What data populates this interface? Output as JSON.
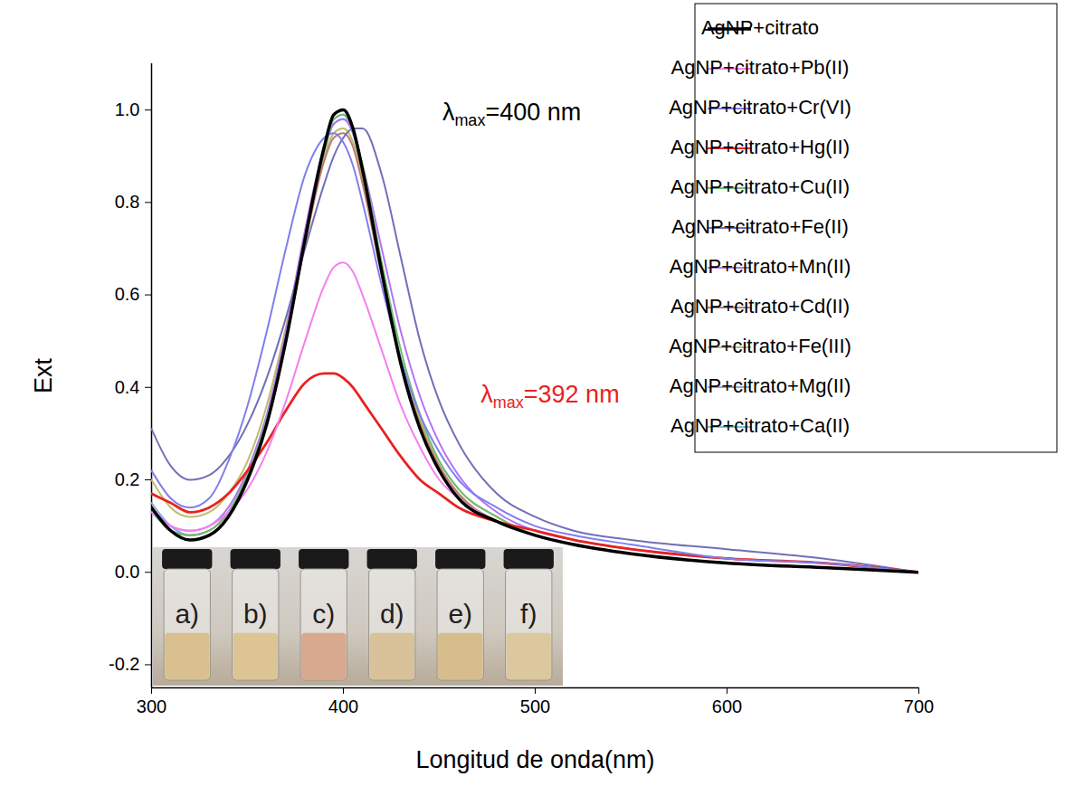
{
  "chart_data": {
    "type": "line",
    "x_label": "Longitud de onda(nm)",
    "y_label": "Ext",
    "xlim": [
      300,
      700
    ],
    "xticks": [
      300,
      400,
      500,
      600,
      700
    ],
    "ylim": [
      -0.25,
      1.1
    ],
    "yticks": [
      -0.2,
      {
        "value": 0,
        "label": "0.0"
      },
      0.2,
      0.4,
      0.6,
      0.8,
      {
        "value": 1,
        "label": "1.0"
      }
    ],
    "grid": false,
    "legend": "upper right",
    "x": [
      300,
      310,
      320,
      330,
      340,
      350,
      360,
      370,
      380,
      390,
      395,
      400,
      405,
      410,
      420,
      430,
      440,
      450,
      460,
      480,
      500,
      520,
      550,
      600,
      650,
      700
    ],
    "series": [
      {
        "name": "AgNP+citrato",
        "color": "#000000",
        "values": [
          0.14,
          0.09,
          0.07,
          0.08,
          0.12,
          0.2,
          0.32,
          0.5,
          0.72,
          0.92,
          0.99,
          1.0,
          0.96,
          0.87,
          0.65,
          0.45,
          0.31,
          0.22,
          0.16,
          0.11,
          0.08,
          0.06,
          0.04,
          0.02,
          0.01,
          0.0
        ]
      },
      {
        "name": "AgNP+citrato+Pb(II)",
        "color": "#f57ff0",
        "values": [
          0.13,
          0.1,
          0.09,
          0.1,
          0.13,
          0.18,
          0.26,
          0.37,
          0.5,
          0.62,
          0.66,
          0.67,
          0.65,
          0.6,
          0.48,
          0.36,
          0.27,
          0.2,
          0.16,
          0.11,
          0.08,
          0.06,
          0.04,
          0.02,
          0.01,
          0.0
        ]
      },
      {
        "name": "AgNP+citrato+Cr(VI)",
        "color": "#7f80ec",
        "values": [
          0.22,
          0.16,
          0.14,
          0.16,
          0.24,
          0.36,
          0.52,
          0.7,
          0.86,
          0.94,
          0.95,
          0.93,
          0.88,
          0.8,
          0.62,
          0.46,
          0.34,
          0.26,
          0.2,
          0.14,
          0.1,
          0.08,
          0.06,
          0.03,
          0.02,
          0.0
        ]
      },
      {
        "name": "AgNP+citrato+Hg(II)",
        "color": "#e8221f",
        "values": [
          0.17,
          0.15,
          0.13,
          0.14,
          0.17,
          0.22,
          0.28,
          0.35,
          0.41,
          0.43,
          0.43,
          0.42,
          0.4,
          0.37,
          0.31,
          0.25,
          0.2,
          0.17,
          0.14,
          0.11,
          0.09,
          0.07,
          0.05,
          0.03,
          0.02,
          0.0
        ]
      },
      {
        "name": "AgNP+citrato+Cu(II)",
        "color": "#6fbf73",
        "values": [
          0.14,
          0.09,
          0.08,
          0.09,
          0.13,
          0.21,
          0.33,
          0.5,
          0.72,
          0.91,
          0.98,
          0.99,
          0.96,
          0.88,
          0.67,
          0.48,
          0.34,
          0.24,
          0.18,
          0.12,
          0.08,
          0.06,
          0.04,
          0.02,
          0.01,
          0.0
        ]
      },
      {
        "name": "AgNP+citrato+Fe(II)",
        "color": "#7070b8",
        "values": [
          0.31,
          0.23,
          0.2,
          0.21,
          0.25,
          0.32,
          0.42,
          0.55,
          0.7,
          0.84,
          0.9,
          0.94,
          0.96,
          0.96,
          0.86,
          0.68,
          0.5,
          0.37,
          0.28,
          0.17,
          0.12,
          0.09,
          0.07,
          0.05,
          0.03,
          0.0
        ]
      },
      {
        "name": "AgNP+citrato+Mn(II)",
        "color": "#b473f5",
        "values": [
          0.14,
          0.1,
          0.09,
          0.1,
          0.14,
          0.22,
          0.34,
          0.52,
          0.74,
          0.92,
          0.97,
          0.98,
          0.95,
          0.88,
          0.7,
          0.52,
          0.38,
          0.28,
          0.21,
          0.13,
          0.09,
          0.07,
          0.05,
          0.03,
          0.02,
          0.0
        ]
      },
      {
        "name": "AgNP+citrato+Cd(II)",
        "color": "#c07a70",
        "values": [
          0.14,
          0.09,
          0.08,
          0.09,
          0.13,
          0.21,
          0.33,
          0.5,
          0.71,
          0.89,
          0.94,
          0.95,
          0.92,
          0.84,
          0.64,
          0.45,
          0.32,
          0.23,
          0.17,
          0.11,
          0.08,
          0.06,
          0.04,
          0.02,
          0.01,
          0.0
        ]
      },
      {
        "name": "AgNP+citrato+Fe(III)",
        "color": "#bdbd6c",
        "values": [
          0.2,
          0.14,
          0.12,
          0.13,
          0.17,
          0.24,
          0.36,
          0.53,
          0.73,
          0.9,
          0.95,
          0.96,
          0.93,
          0.85,
          0.65,
          0.46,
          0.33,
          0.24,
          0.18,
          0.12,
          0.08,
          0.06,
          0.04,
          0.02,
          0.01,
          0.0
        ]
      },
      {
        "name": "AgNP+citrato+Mg(II)",
        "color": "#8fa8e0",
        "values": [
          0.15,
          0.1,
          0.08,
          0.09,
          0.13,
          0.21,
          0.33,
          0.51,
          0.73,
          0.92,
          0.98,
          0.99,
          0.95,
          0.87,
          0.66,
          0.46,
          0.32,
          0.23,
          0.17,
          0.11,
          0.08,
          0.06,
          0.04,
          0.02,
          0.01,
          0.0
        ]
      },
      {
        "name": "AgNP+citrato+Ca(II)",
        "color": "#70c8c8",
        "values": [
          0.13,
          0.09,
          0.07,
          0.08,
          0.12,
          0.2,
          0.32,
          0.5,
          0.72,
          0.91,
          0.97,
          0.98,
          0.95,
          0.86,
          0.65,
          0.45,
          0.31,
          0.22,
          0.16,
          0.11,
          0.08,
          0.06,
          0.04,
          0.02,
          0.01,
          0.0
        ]
      }
    ],
    "annotations": [
      {
        "text": "λmax=400 nm",
        "subscript": "max",
        "x": 488,
        "y": 0.99,
        "color": "#000000"
      },
      {
        "text": "λmax=392 nm",
        "subscript": "max",
        "x": 508,
        "y": 0.38,
        "color": "#e8221f"
      }
    ],
    "inset_labels": [
      "a)",
      "b)",
      "c)",
      "d)",
      "e)",
      "f)"
    ]
  }
}
